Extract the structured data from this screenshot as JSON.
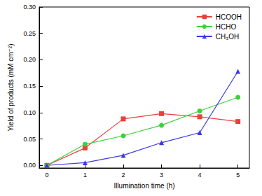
{
  "chart_data": {
    "type": "line",
    "x_label": "Illumination time (h)",
    "y_label": "Yield of products (mM cm⁻²)",
    "x": [
      0,
      1,
      2,
      3,
      4,
      5
    ],
    "series": [
      {
        "name": "HCOOH",
        "color": "#e8403a",
        "marker": "square",
        "values": [
          0,
          0.033,
          0.088,
          0.098,
          0.092,
          0.083
        ]
      },
      {
        "name": "HCHO",
        "color": "#3bd13b",
        "marker": "circle",
        "values": [
          0,
          0.04,
          0.056,
          0.076,
          0.103,
          0.129
        ]
      },
      {
        "name": "CH₃OH",
        "color": "#3a3ae0",
        "marker": "triangle",
        "values": [
          0,
          0.005,
          0.019,
          0.043,
          0.062,
          0.178
        ]
      }
    ],
    "xlim": [
      -0.2,
      5.3
    ],
    "xticks": [
      0,
      1,
      2,
      3,
      4,
      5
    ],
    "ylim": [
      -0.005,
      0.3
    ],
    "yticks": [
      {
        "value": 0,
        "label": "0.00"
      },
      {
        "value": 0.05,
        "label": "0.05"
      },
      {
        "value": 0.1,
        "label": "0.10"
      },
      {
        "value": 0.15,
        "label": "0.15"
      },
      {
        "value": 0.2,
        "label": "0.20"
      },
      {
        "value": 0.25,
        "label": "0.25"
      },
      {
        "value": 0.3,
        "label": "0.30"
      }
    ],
    "grid": false,
    "legend": "upper right"
  }
}
